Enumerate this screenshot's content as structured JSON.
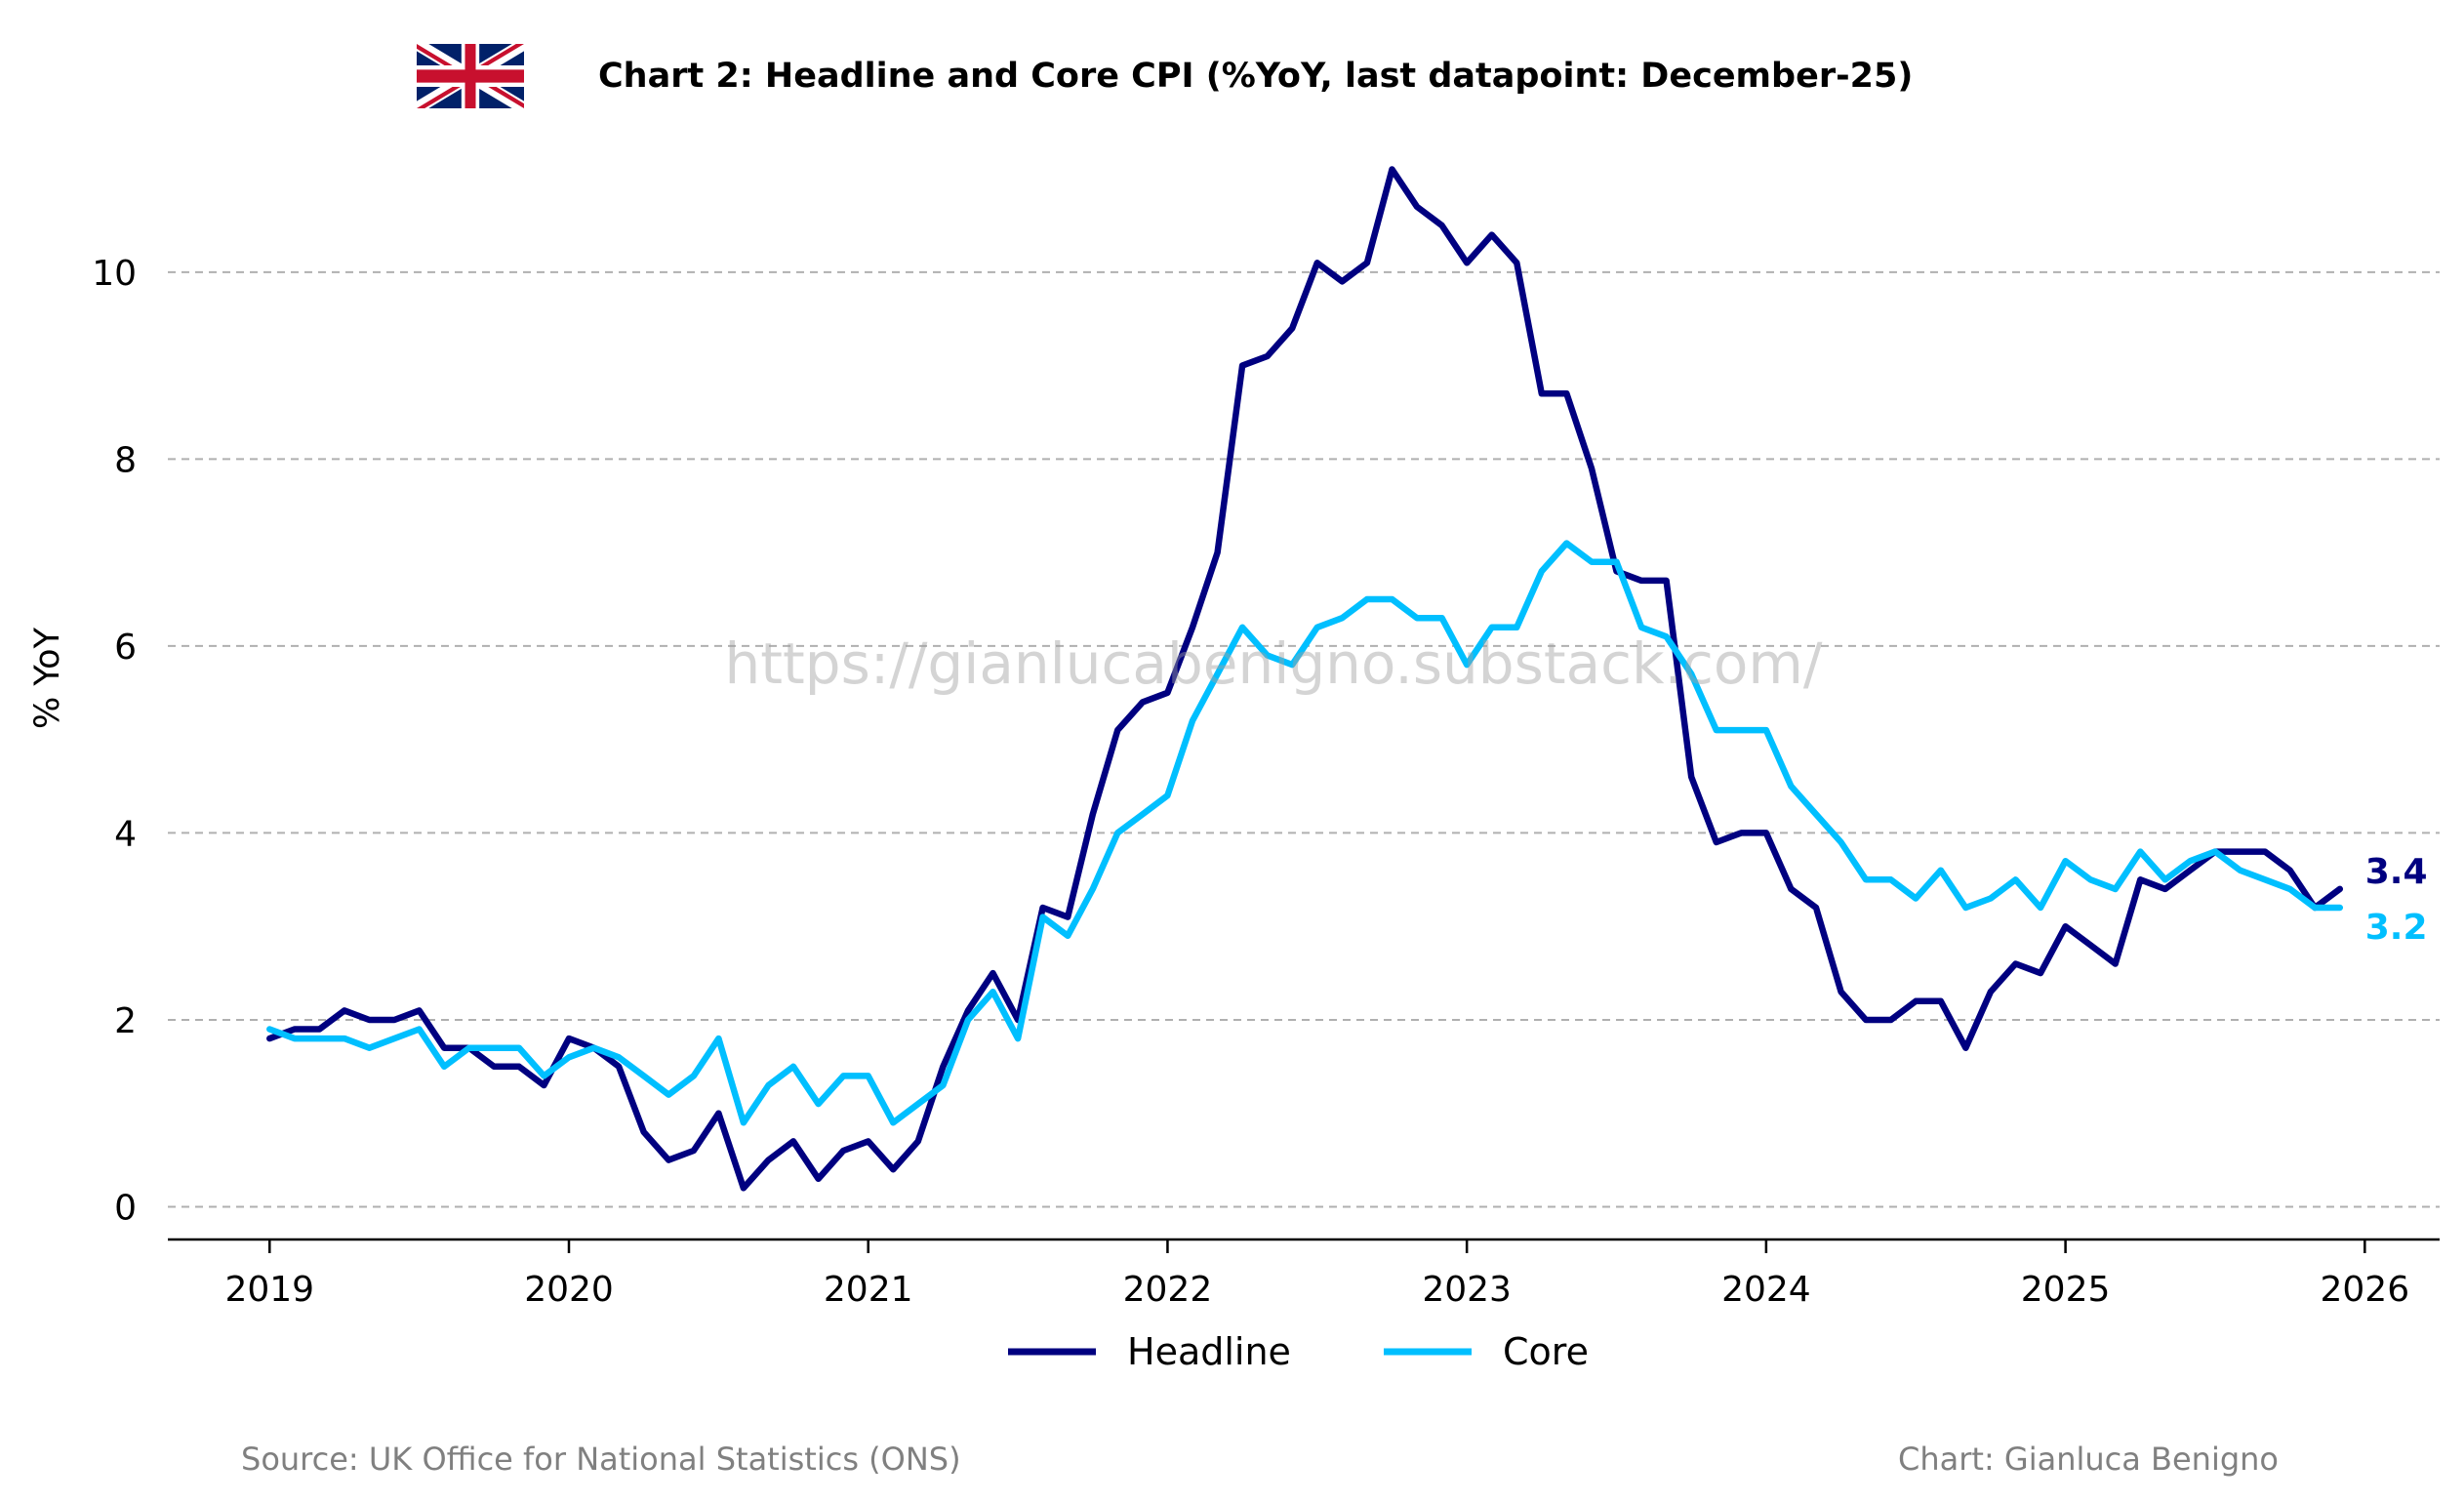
{
  "chart_data": {
    "type": "line",
    "title": "Chart 2: Headline and Core CPI (%YoY, last datapoint: December-25)",
    "ylabel": "% YoY",
    "xlabel": "",
    "xlim": [
      2018.66,
      2026.25
    ],
    "ylim": [
      -0.35,
      11.45
    ],
    "x_ticks": [
      2019,
      2020,
      2021,
      2022,
      2023,
      2024,
      2025,
      2026
    ],
    "y_ticks": [
      0,
      2,
      4,
      6,
      8,
      10
    ],
    "grid": "horizontal dashed",
    "legend": "bottom-center",
    "x_start": "2019-01",
    "x_frequency": "monthly",
    "series": [
      {
        "name": "Headline",
        "color": "#000080",
        "end_label": "3.4",
        "values": [
          1.8,
          1.9,
          1.9,
          2.1,
          2.0,
          2.0,
          2.1,
          1.7,
          1.7,
          1.5,
          1.5,
          1.3,
          1.8,
          1.7,
          1.5,
          0.8,
          0.5,
          0.6,
          1.0,
          0.2,
          0.5,
          0.7,
          0.3,
          0.6,
          0.7,
          0.4,
          0.7,
          1.5,
          2.1,
          2.5,
          2.0,
          3.2,
          3.1,
          4.2,
          5.1,
          5.4,
          5.5,
          6.2,
          7.0,
          9.0,
          9.1,
          9.4,
          10.1,
          9.9,
          10.1,
          11.1,
          10.7,
          10.5,
          10.1,
          10.4,
          10.1,
          8.7,
          8.7,
          7.9,
          6.8,
          6.7,
          6.7,
          4.6,
          3.9,
          4.0,
          4.0,
          3.4,
          3.2,
          2.3,
          2.0,
          2.0,
          2.2,
          2.2,
          1.7,
          2.3,
          2.6,
          2.5,
          3.0,
          2.8,
          2.6,
          3.5,
          3.4,
          3.6,
          3.8,
          3.8,
          3.8,
          3.6,
          3.2,
          3.4
        ]
      },
      {
        "name": "Core",
        "color": "#00bfff",
        "end_label": "3.2",
        "values": [
          1.9,
          1.8,
          1.8,
          1.8,
          1.7,
          1.8,
          1.9,
          1.5,
          1.7,
          1.7,
          1.7,
          1.4,
          1.6,
          1.7,
          1.6,
          1.4,
          1.2,
          1.4,
          1.8,
          0.9,
          1.3,
          1.5,
          1.1,
          1.4,
          1.4,
          0.9,
          1.1,
          1.3,
          2.0,
          2.3,
          1.8,
          3.1,
          2.9,
          3.4,
          4.0,
          4.2,
          4.4,
          5.2,
          5.7,
          6.2,
          5.9,
          5.8,
          6.2,
          6.3,
          6.5,
          6.5,
          6.3,
          6.3,
          5.8,
          6.2,
          6.2,
          6.8,
          7.1,
          6.9,
          6.9,
          6.2,
          6.1,
          5.7,
          5.1,
          5.1,
          5.1,
          4.5,
          4.2,
          3.9,
          3.5,
          3.5,
          3.3,
          3.6,
          3.2,
          3.3,
          3.5,
          3.2,
          3.7,
          3.5,
          3.4,
          3.8,
          3.5,
          3.7,
          3.8,
          3.6,
          3.5,
          3.4,
          3.2,
          3.2
        ]
      }
    ]
  },
  "watermark": "https://gianlucabenigno.substack.com/",
  "footer": {
    "source": "Source: UK Office for National Statistics (ONS)",
    "credit": "Chart: Gianluca Benigno"
  },
  "flag_icon": "uk-flag-icon"
}
